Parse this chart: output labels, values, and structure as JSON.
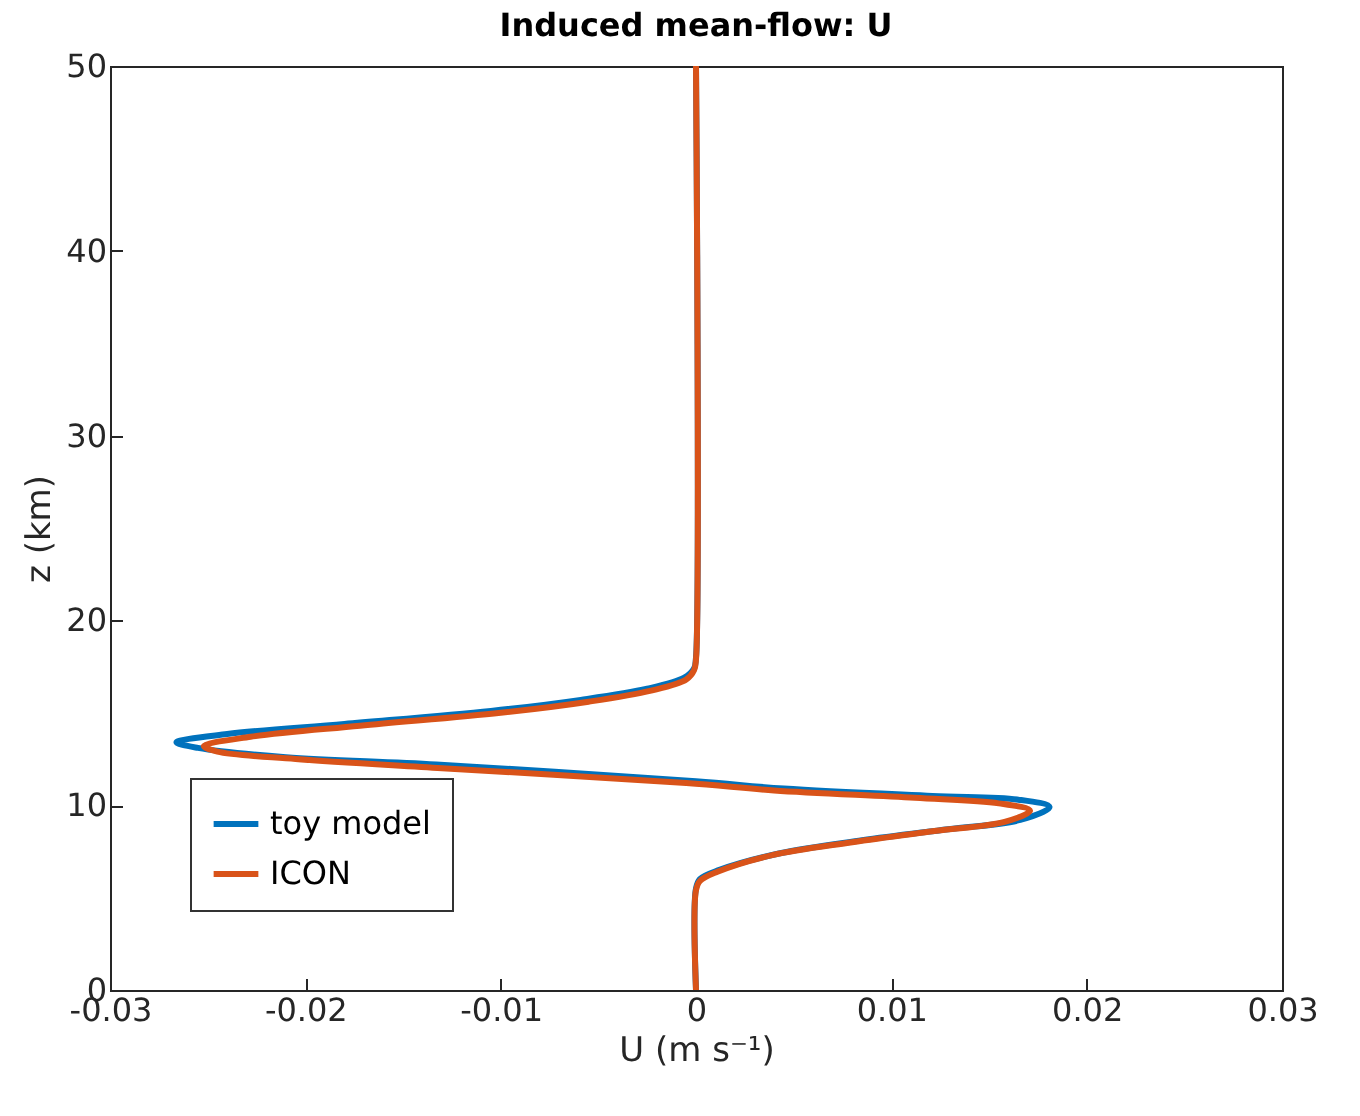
{
  "chart_data": {
    "type": "line",
    "title": "Induced mean-flow: U",
    "xlabel": "U (m s⁻¹)",
    "ylabel": "z (km)",
    "xlim": [
      -0.03,
      0.03
    ],
    "xticks": [
      -0.03,
      -0.02,
      -0.01,
      0,
      0.01,
      0.02,
      0.03
    ],
    "ylim": [
      0,
      50
    ],
    "yticks": [
      0,
      10,
      20,
      30,
      40,
      50
    ],
    "grid": false,
    "legend": "bottom left",
    "marker": "none",
    "line_style": "solid",
    "series": [
      {
        "name": "toy model",
        "color": "#0072bd",
        "x": [
          0,
          0,
          0.0002,
          0.0012,
          0.0043,
          0.0085,
          0.0129,
          0.0166,
          0.0181,
          0.0165,
          0.0121,
          0.0045,
          0,
          -0.0133,
          -0.021,
          -0.0255,
          -0.0266,
          -0.024,
          -0.018,
          -0.0105,
          -0.0059,
          -0.0025,
          -0.0006,
          -0.0001,
          0,
          0
        ],
        "values": [
          0,
          5.5,
          6,
          6.5,
          7.4,
          8.1,
          8.7,
          9.2,
          9.9,
          10.3,
          10.5,
          10.9,
          11.3,
          12.2,
          12.6,
          13.1,
          13.4,
          13.85,
          14.4,
          15.1,
          15.7,
          16.3,
          16.9,
          17.4,
          18,
          50
        ]
      },
      {
        "name": "ICON",
        "color": "#d95319",
        "x": [
          0,
          0,
          0.0002,
          0.0011,
          0.0039,
          0.008,
          0.0122,
          0.0158,
          0.0171,
          0.0155,
          0.0112,
          0.004,
          -0.0005,
          -0.013,
          -0.0205,
          -0.0245,
          -0.0252,
          -0.0228,
          -0.0172,
          -0.01,
          -0.0055,
          -0.0023,
          -0.0005,
          -0.0001,
          0,
          0
        ],
        "values": [
          0,
          5.4,
          5.9,
          6.4,
          7.3,
          8.0,
          8.6,
          9.1,
          9.7,
          10.1,
          10.4,
          10.8,
          11.2,
          12.0,
          12.5,
          12.9,
          13.2,
          13.7,
          14.3,
          15.0,
          15.6,
          16.2,
          16.8,
          17.3,
          17.9,
          50
        ]
      }
    ]
  }
}
